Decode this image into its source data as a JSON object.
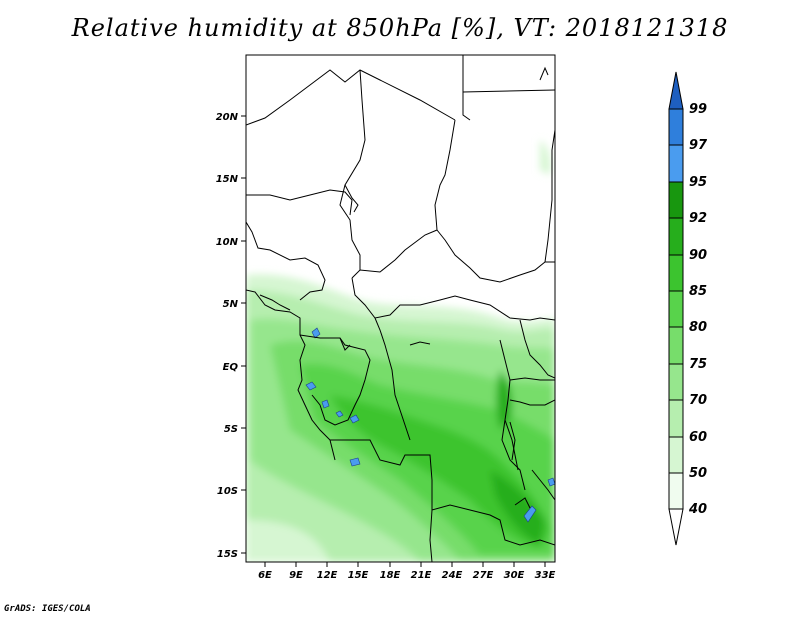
{
  "title": "Relative humidity at 850hPa [%], VT: 2018121318",
  "credit": "GrADS: IGES/COLA",
  "map": {
    "lat_labels": [
      "20N",
      "15N",
      "10N",
      "5N",
      "EQ",
      "5S",
      "10S",
      "15S"
    ],
    "lon_labels": [
      "6E",
      "9E",
      "12E",
      "15E",
      "18E",
      "21E",
      "24E",
      "27E",
      "30E",
      "33E"
    ]
  },
  "colorbar": {
    "levels": [
      "40",
      "50",
      "60",
      "70",
      "75",
      "80",
      "85",
      "90",
      "92",
      "95",
      "97",
      "99"
    ],
    "colors": [
      "#f0fcef",
      "#d6f6d2",
      "#b6eeaf",
      "#96e68d",
      "#77dd6b",
      "#58d34b",
      "#3cc42f",
      "#26ae1c",
      "#18970f",
      "#4a9cef",
      "#2f7fdc",
      "#1e5fc0"
    ],
    "open_ends": [
      "low-arrow-white",
      "high-arrow-blue"
    ]
  }
}
